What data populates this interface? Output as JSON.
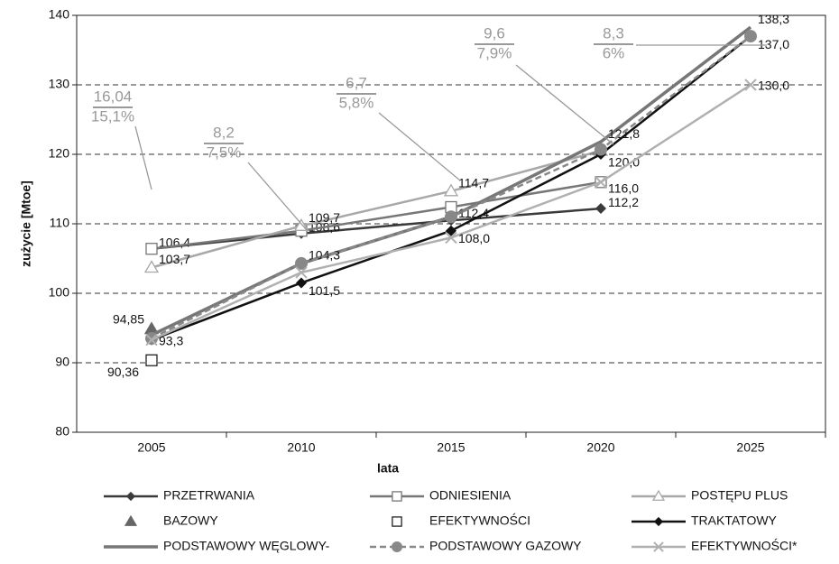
{
  "chart_data": {
    "type": "line",
    "x_label": "lata",
    "y_label": "zużycie [Mtoe]",
    "categories": [
      "2005",
      "2010",
      "2015",
      "2020",
      "2025"
    ],
    "ylim": [
      80,
      140
    ],
    "yticks": [
      80,
      90,
      100,
      110,
      120,
      130,
      140
    ],
    "grid": true,
    "series": [
      {
        "name": "PRZETRWANIA",
        "color": "#3a3a3a",
        "marker": "diamond",
        "values": [
          106.4,
          108.6,
          110.5,
          112.2,
          null
        ],
        "value_labels": [
          "106,4",
          "108,6",
          null,
          "112,2",
          null
        ]
      },
      {
        "name": "ODNIESIENIA",
        "color": "#777777",
        "marker": "square-open",
        "values": [
          106.4,
          109.0,
          112.4,
          116.0,
          null
        ],
        "value_labels": [
          null,
          null,
          "112,4",
          "116,0",
          null
        ]
      },
      {
        "name": "POSTĘPU PLUS",
        "color": "#a8a8a8",
        "marker": "triangle-open",
        "values": [
          103.7,
          109.7,
          114.7,
          120.5,
          null
        ],
        "value_labels": [
          "103,7",
          "109,7",
          "114,7",
          null,
          null
        ]
      },
      {
        "name": "BAZOWY",
        "color": "#666666",
        "marker": "triangle",
        "values": [
          94.85,
          null,
          null,
          null,
          null
        ],
        "value_labels": [
          "94,85",
          null,
          null,
          null,
          null
        ]
      },
      {
        "name": "EFEKTYWNOŚCI",
        "color": "#222222",
        "marker": "square-open",
        "values": [
          90.36,
          null,
          null,
          null,
          null
        ],
        "value_labels": [
          "90,36",
          null,
          null,
          null,
          null
        ]
      },
      {
        "name": "TRAKTATOWY",
        "color": "#111111",
        "marker": "diamond",
        "values": [
          93.3,
          101.5,
          109.0,
          120.0,
          137.0
        ],
        "value_labels": [
          null,
          "101,5",
          null,
          "120,0",
          null
        ]
      },
      {
        "name": "PODSTAWOWY WĘGLOWY-",
        "color": "#777777",
        "marker": "none",
        "values": [
          94.0,
          104.3,
          111.0,
          121.8,
          138.3
        ],
        "value_labels": [
          null,
          "104,3",
          null,
          "121,8",
          "138,3"
        ]
      },
      {
        "name": "PODSTAWOWY GAZOWY",
        "color": "#888888",
        "marker": "circle",
        "dashed": true,
        "values": [
          93.5,
          104.3,
          111.0,
          120.7,
          137.0
        ],
        "value_labels": [
          null,
          null,
          null,
          null,
          "137,0"
        ]
      },
      {
        "name": "EFEKTYWNOŚCI*",
        "color": "#b0b0b0",
        "marker": "x",
        "values": [
          93.3,
          103.0,
          108.0,
          116.0,
          130.0
        ],
        "value_labels": [
          "93,3",
          null,
          "108,0",
          null,
          "130,0"
        ]
      }
    ],
    "annotations": [
      {
        "top": "16,04",
        "bottom": "15,1%"
      },
      {
        "top": "8,2",
        "bottom": "7,5%"
      },
      {
        "top": "6,7",
        "bottom": "5,8%"
      },
      {
        "top": "9,6",
        "bottom": "7,9%"
      },
      {
        "top": "8,3",
        "bottom": "6%"
      }
    ]
  }
}
